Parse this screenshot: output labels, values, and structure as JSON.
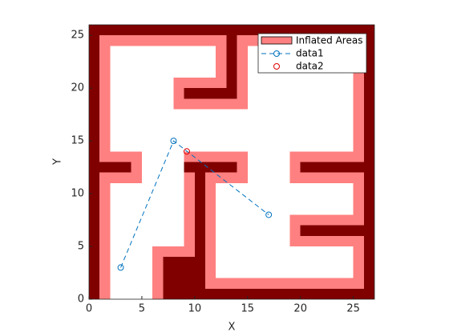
{
  "chart_data": {
    "type": "occupancy",
    "xlabel": "X",
    "ylabel": "Y",
    "xlim": [
      0,
      27
    ],
    "ylim": [
      0,
      26
    ],
    "xticks": [
      0,
      5,
      10,
      15,
      20,
      25
    ],
    "yticks": [
      0,
      5,
      10,
      15,
      20,
      25
    ],
    "inflated": {
      "name": "Inflated Areas",
      "color": "#ff8080",
      "rects": [
        [
          1,
          0,
          2,
          25
        ],
        [
          1,
          24,
          26,
          25
        ],
        [
          25,
          1,
          26,
          25
        ],
        [
          11,
          1,
          26,
          2
        ],
        [
          6,
          0,
          12,
          5
        ],
        [
          9,
          4,
          12,
          14
        ],
        [
          9,
          11,
          15,
          14
        ],
        [
          12,
          18,
          15,
          25
        ],
        [
          8,
          18,
          15,
          21
        ],
        [
          1,
          11,
          5,
          14
        ],
        [
          19,
          11,
          26,
          14
        ],
        [
          19,
          5,
          26,
          8
        ]
      ]
    },
    "obstacles": {
      "color": "#800000",
      "rects": [
        [
          0,
          0,
          1,
          26
        ],
        [
          0,
          25,
          27,
          26
        ],
        [
          26,
          0,
          27,
          26
        ],
        [
          7,
          0,
          11,
          4
        ],
        [
          11,
          0,
          27,
          1
        ],
        [
          10,
          0,
          11,
          13
        ],
        [
          9,
          12,
          14,
          13
        ],
        [
          13,
          19,
          14,
          25
        ],
        [
          9,
          19,
          14,
          20
        ],
        [
          1,
          12,
          4,
          13
        ],
        [
          20,
          12,
          26,
          13
        ],
        [
          20,
          6,
          26,
          7
        ]
      ]
    },
    "series": [
      {
        "name": "data1",
        "color": "#0072bd",
        "x": [
          3,
          8,
          17
        ],
        "values": [
          3,
          15,
          8
        ]
      },
      {
        "name": "data2",
        "color": "#e00000",
        "x": [
          9.25
        ],
        "values": [
          14
        ]
      }
    ],
    "legend": "top-right"
  }
}
